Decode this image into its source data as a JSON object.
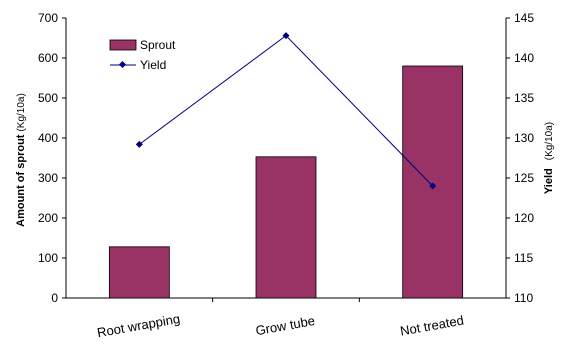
{
  "chart_data": {
    "type": "bar",
    "categories": [
      "Root wrapping",
      "Grow tube",
      "Not treated"
    ],
    "series": [
      {
        "name": "Sprout",
        "kind": "bar",
        "axis": "left",
        "values": [
          128,
          353,
          580
        ],
        "color": "#993366"
      },
      {
        "name": "Yield",
        "kind": "line",
        "axis": "right",
        "values": [
          129.2,
          142.8,
          124.0
        ],
        "color": "#000080"
      }
    ],
    "y_left": {
      "label": "Amount of sprout",
      "unit": "(Kg/10a)",
      "range": [
        0,
        700
      ],
      "ticks": [
        0,
        100,
        200,
        300,
        400,
        500,
        600,
        700
      ]
    },
    "y_right": {
      "label": "Yield",
      "unit": "(Kg/10a)",
      "range": [
        110,
        145
      ],
      "ticks": [
        110,
        115,
        120,
        125,
        130,
        135,
        140,
        145
      ]
    },
    "legend": {
      "placement": "top-left",
      "entries": [
        "Sprout",
        "Yield"
      ]
    },
    "grid": false
  }
}
